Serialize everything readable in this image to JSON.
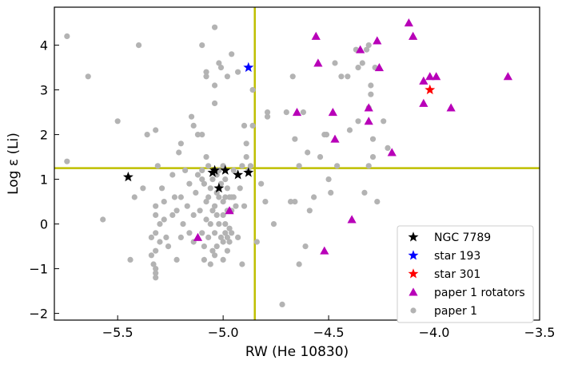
{
  "chart_data": {
    "type": "scatter",
    "xlabel": "RW (He 10830)",
    "ylabel": "Log ε (Li)",
    "xlim": [
      -5.8,
      -3.5
    ],
    "ylim": [
      -2.15,
      4.85
    ],
    "xticks": [
      -5.5,
      -5.0,
      -4.5,
      -4.0,
      -3.5
    ],
    "xtick_labels": [
      "−5.5",
      "−5.0",
      "−4.5",
      "−4.0",
      "−3.5"
    ],
    "yticks": [
      -2,
      -1,
      0,
      1,
      2,
      3,
      4
    ],
    "ytick_labels": [
      "−2",
      "−1",
      "0",
      "1",
      "2",
      "3",
      "4"
    ],
    "grid": false,
    "legend_position": "bottom-right",
    "reference_lines": {
      "vertical_x": -4.85,
      "horizontal_y": 1.25,
      "color": "#bfbf00"
    },
    "series": [
      {
        "name": "paper 1",
        "marker": "circle",
        "color": "#b3b3b3",
        "points": [
          [
            -5.74,
            4.2
          ],
          [
            -5.74,
            1.4
          ],
          [
            -5.64,
            3.3
          ],
          [
            -5.57,
            0.1
          ],
          [
            -5.5,
            2.3
          ],
          [
            -5.44,
            -0.8
          ],
          [
            -5.42,
            0.6
          ],
          [
            -5.4,
            4.0
          ],
          [
            -5.38,
            0.8
          ],
          [
            -5.36,
            2.0
          ],
          [
            -5.34,
            -0.3
          ],
          [
            -5.34,
            -0.7
          ],
          [
            -5.33,
            -0.9
          ],
          [
            -5.32,
            -1.1
          ],
          [
            -5.32,
            -1.2
          ],
          [
            -5.32,
            -1.0
          ],
          [
            -5.32,
            -0.6
          ],
          [
            -5.32,
            -0.2
          ],
          [
            -5.32,
            0.2
          ],
          [
            -5.32,
            0.4
          ],
          [
            -5.32,
            2.1
          ],
          [
            -5.31,
            1.3
          ],
          [
            -5.3,
            0.0
          ],
          [
            -5.3,
            -0.4
          ],
          [
            -5.29,
            0.8
          ],
          [
            -5.28,
            0.5
          ],
          [
            -5.28,
            0.1
          ],
          [
            -5.27,
            -0.3
          ],
          [
            -5.26,
            -0.5
          ],
          [
            -5.24,
            0.2
          ],
          [
            -5.24,
            1.1
          ],
          [
            -5.23,
            0.6
          ],
          [
            -5.22,
            -0.8
          ],
          [
            -5.22,
            0.3
          ],
          [
            -5.21,
            1.6
          ],
          [
            -5.2,
            -0.3
          ],
          [
            -5.2,
            0.6
          ],
          [
            -5.2,
            1.8
          ],
          [
            -5.19,
            0.0
          ],
          [
            -5.18,
            1.2
          ],
          [
            -5.17,
            0.4
          ],
          [
            -5.16,
            -0.2
          ],
          [
            -5.16,
            0.9
          ],
          [
            -5.15,
            2.4
          ],
          [
            -5.14,
            2.2
          ],
          [
            -5.14,
            0.2
          ],
          [
            -5.14,
            -0.4
          ],
          [
            -5.13,
            0.7
          ],
          [
            -5.12,
            1.1
          ],
          [
            -5.12,
            2.0
          ],
          [
            -5.11,
            0.3
          ],
          [
            -5.1,
            1.0
          ],
          [
            -5.1,
            -0.2
          ],
          [
            -5.1,
            4.0
          ],
          [
            -5.1,
            2.0
          ],
          [
            -5.1,
            1.2
          ],
          [
            -5.09,
            -0.8
          ],
          [
            -5.09,
            0.9
          ],
          [
            -5.09,
            -0.5
          ],
          [
            -5.08,
            0.5
          ],
          [
            -5.08,
            3.3
          ],
          [
            -5.08,
            3.4
          ],
          [
            -5.08,
            0.1
          ],
          [
            -5.08,
            1.5
          ],
          [
            -5.07,
            1.3
          ],
          [
            -5.07,
            0.6
          ],
          [
            -5.07,
            -0.3
          ],
          [
            -5.06,
            0.8
          ],
          [
            -5.06,
            0.0
          ],
          [
            -5.06,
            -0.9
          ],
          [
            -5.05,
            1.0
          ],
          [
            -5.05,
            0.3
          ],
          [
            -5.05,
            -0.6
          ],
          [
            -5.04,
            3.1
          ],
          [
            -5.04,
            2.7
          ],
          [
            -5.04,
            4.4
          ],
          [
            -5.04,
            0.4
          ],
          [
            -5.04,
            -0.2
          ],
          [
            -5.04,
            -0.7
          ],
          [
            -5.03,
            1.1
          ],
          [
            -5.03,
            0.7
          ],
          [
            -5.03,
            0.2
          ],
          [
            -5.03,
            -0.5
          ],
          [
            -5.02,
            3.6
          ],
          [
            -5.02,
            1.2
          ],
          [
            -5.02,
            0.6
          ],
          [
            -5.02,
            0.0
          ],
          [
            -5.01,
            3.5
          ],
          [
            -5.01,
            0.9
          ],
          [
            -5.01,
            -0.3
          ],
          [
            -5.0,
            1.3
          ],
          [
            -5.0,
            0.5
          ],
          [
            -5.0,
            0.2
          ],
          [
            -5.0,
            -0.4
          ],
          [
            -5.0,
            -0.8
          ],
          [
            -4.99,
            1.0
          ],
          [
            -4.99,
            0.6
          ],
          [
            -4.99,
            0.0
          ],
          [
            -4.99,
            -0.2
          ],
          [
            -4.98,
            3.3
          ],
          [
            -4.98,
            0.8
          ],
          [
            -4.98,
            0.3
          ],
          [
            -4.98,
            -0.3
          ],
          [
            -4.98,
            -0.6
          ],
          [
            -4.97,
            0.6
          ],
          [
            -4.97,
            -0.1
          ],
          [
            -4.97,
            -0.4
          ],
          [
            -4.96,
            0.6
          ],
          [
            -4.96,
            0.3
          ],
          [
            -4.96,
            -0.2
          ],
          [
            -4.96,
            3.8
          ],
          [
            -4.95,
            0.6
          ],
          [
            -4.95,
            1.2
          ],
          [
            -4.94,
            0.4
          ],
          [
            -4.93,
            -0.3
          ],
          [
            -4.93,
            3.4
          ],
          [
            -4.92,
            0.8
          ],
          [
            -4.91,
            1.3
          ],
          [
            -4.91,
            -0.9
          ],
          [
            -4.9,
            2.2
          ],
          [
            -4.9,
            0.4
          ],
          [
            -4.89,
            1.8
          ],
          [
            -4.89,
            1.5
          ],
          [
            -4.88,
            1.2
          ],
          [
            -4.87,
            1.3
          ],
          [
            -4.86,
            3.0
          ],
          [
            -4.86,
            2.2
          ],
          [
            -4.84,
            -0.4
          ],
          [
            -4.82,
            0.9
          ],
          [
            -4.8,
            0.5
          ],
          [
            -4.79,
            2.5
          ],
          [
            -4.79,
            2.4
          ],
          [
            -4.76,
            0.0
          ],
          [
            -4.72,
            -1.8
          ],
          [
            -4.7,
            2.5
          ],
          [
            -4.68,
            0.5
          ],
          [
            -4.67,
            3.3
          ],
          [
            -4.66,
            1.9
          ],
          [
            -4.66,
            0.5
          ],
          [
            -4.64,
            1.3
          ],
          [
            -4.64,
            -0.9
          ],
          [
            -4.62,
            2.5
          ],
          [
            -4.61,
            -0.5
          ],
          [
            -4.6,
            1.6
          ],
          [
            -4.59,
            0.3
          ],
          [
            -4.57,
            0.6
          ],
          [
            -4.54,
            1.5
          ],
          [
            -4.52,
            2.0
          ],
          [
            -4.51,
            2.0
          ],
          [
            -4.5,
            1.0
          ],
          [
            -4.49,
            0.7
          ],
          [
            -4.47,
            3.6
          ],
          [
            -4.46,
            1.3
          ],
          [
            -4.44,
            3.3
          ],
          [
            -4.41,
            3.3
          ],
          [
            -4.4,
            2.1
          ],
          [
            -4.37,
            3.9
          ],
          [
            -4.36,
            3.5
          ],
          [
            -4.36,
            2.3
          ],
          [
            -4.34,
            3.6
          ],
          [
            -4.33,
            0.7
          ],
          [
            -4.32,
            3.9
          ],
          [
            -4.31,
            4.0
          ],
          [
            -4.31,
            2.6
          ],
          [
            -4.31,
            1.3
          ],
          [
            -4.3,
            3.1
          ],
          [
            -4.3,
            2.9
          ],
          [
            -4.29,
            1.5
          ],
          [
            -4.29,
            1.9
          ],
          [
            -4.28,
            3.5
          ],
          [
            -4.27,
            0.5
          ],
          [
            -4.24,
            2.3
          ],
          [
            -4.22,
            1.7
          ]
        ]
      },
      {
        "name": "paper 1 rotators",
        "marker": "triangle",
        "color": "#b800b8",
        "points": [
          [
            -5.12,
            -0.3
          ],
          [
            -4.97,
            0.3
          ],
          [
            -4.65,
            2.5
          ],
          [
            -4.56,
            4.2
          ],
          [
            -4.55,
            3.6
          ],
          [
            -4.52,
            -0.6
          ],
          [
            -4.48,
            2.5
          ],
          [
            -4.47,
            1.9
          ],
          [
            -4.39,
            0.1
          ],
          [
            -4.35,
            3.9
          ],
          [
            -4.31,
            2.6
          ],
          [
            -4.31,
            2.3
          ],
          [
            -4.27,
            4.1
          ],
          [
            -4.26,
            3.5
          ],
          [
            -4.2,
            1.6
          ],
          [
            -4.12,
            4.5
          ],
          [
            -4.1,
            4.2
          ],
          [
            -4.05,
            2.7
          ],
          [
            -4.05,
            3.2
          ],
          [
            -4.02,
            3.3
          ],
          [
            -3.99,
            3.3
          ],
          [
            -3.92,
            2.6
          ],
          [
            -3.65,
            3.3
          ]
        ]
      },
      {
        "name": "NGC 7789",
        "marker": "star",
        "color": "#000000",
        "points": [
          [
            -5.45,
            1.05
          ],
          [
            -5.05,
            1.15
          ],
          [
            -5.04,
            1.2
          ],
          [
            -4.99,
            1.2
          ],
          [
            -4.93,
            1.1
          ],
          [
            -4.88,
            1.15
          ],
          [
            -5.02,
            0.8
          ]
        ]
      },
      {
        "name": "star 193",
        "marker": "star",
        "color": "#0000ff",
        "points": [
          [
            -4.88,
            3.5
          ]
        ]
      },
      {
        "name": "star 301",
        "marker": "star",
        "color": "#ff0000",
        "points": [
          [
            -4.02,
            3.0
          ]
        ]
      }
    ],
    "legend_order": [
      "NGC 7789",
      "star 193",
      "star 301",
      "paper 1 rotators",
      "paper 1"
    ]
  }
}
